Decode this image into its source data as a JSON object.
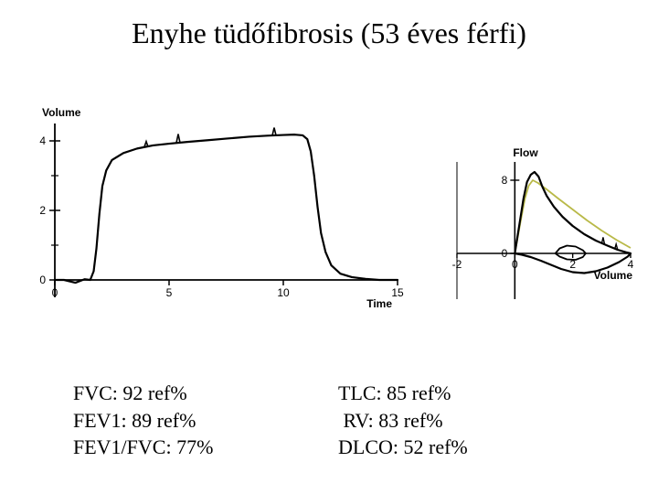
{
  "title": "Enyhe tüdőfibrosis (53 éves férfi)",
  "title_fontsize": 32,
  "title_color": "#000000",
  "values_left": "FVC: 92 ref%\nFEV1: 89 ref%\nFEV1/FVC: 77%",
  "values_right": "TLC: 85 ref%\n RV: 83 ref%\nDLCO: 52 ref%",
  "values_fontsize": 22,
  "volume_chart": {
    "type": "line",
    "xlabel": "Time",
    "ylabel": "Volume",
    "xlim": [
      0,
      15
    ],
    "ylim": [
      -0.5,
      4.5
    ],
    "xticks": [
      0,
      5,
      10,
      15
    ],
    "yticks": [
      0,
      2,
      4
    ],
    "line_color": "#000000",
    "line_width": 2.2,
    "axis_color": "#000000",
    "tick_len": 6,
    "background": "#ffffff",
    "series": [
      [
        0.0,
        0.0
      ],
      [
        0.4,
        0.0
      ],
      [
        0.9,
        -0.08
      ],
      [
        1.3,
        0.02
      ],
      [
        1.55,
        0.0
      ],
      [
        1.7,
        0.25
      ],
      [
        1.82,
        0.9
      ],
      [
        1.95,
        1.9
      ],
      [
        2.08,
        2.7
      ],
      [
        2.25,
        3.15
      ],
      [
        2.5,
        3.45
      ],
      [
        3.0,
        3.65
      ],
      [
        3.6,
        3.78
      ],
      [
        4.3,
        3.87
      ],
      [
        5.0,
        3.92
      ],
      [
        5.8,
        3.97
      ],
      [
        6.7,
        4.02
      ],
      [
        7.6,
        4.07
      ],
      [
        8.5,
        4.12
      ],
      [
        9.3,
        4.15
      ],
      [
        10.0,
        4.17
      ],
      [
        10.5,
        4.18
      ],
      [
        10.85,
        4.16
      ],
      [
        11.05,
        4.05
      ],
      [
        11.2,
        3.7
      ],
      [
        11.35,
        3.0
      ],
      [
        11.5,
        2.1
      ],
      [
        11.65,
        1.35
      ],
      [
        11.85,
        0.8
      ],
      [
        12.1,
        0.42
      ],
      [
        12.5,
        0.18
      ],
      [
        13.0,
        0.08
      ],
      [
        13.6,
        0.03
      ],
      [
        14.2,
        0.0
      ],
      [
        15.0,
        0.0
      ]
    ],
    "blips": [
      {
        "x": 4.0,
        "dy": 0.15
      },
      {
        "x": 5.4,
        "dy": 0.25
      },
      {
        "x": 9.6,
        "dy": 0.22
      }
    ]
  },
  "flow_chart": {
    "type": "line",
    "xlabel": "Volume",
    "ylabel": "Flow",
    "xlim": [
      -2,
      4
    ],
    "ylim": [
      -5,
      10
    ],
    "xticks": [
      -2,
      0,
      2,
      4
    ],
    "yticks": [
      0,
      8
    ],
    "line_width": 2.2,
    "axis_color": "#000000",
    "black": "#000000",
    "ref_color": "#b9b948",
    "background": "#ffffff",
    "loop": [
      [
        0.0,
        0.0
      ],
      [
        0.15,
        3.0
      ],
      [
        0.3,
        6.0
      ],
      [
        0.42,
        7.8
      ],
      [
        0.55,
        8.6
      ],
      [
        0.68,
        8.9
      ],
      [
        0.82,
        8.4
      ],
      [
        0.95,
        7.3
      ],
      [
        1.1,
        6.3
      ],
      [
        1.35,
        5.1
      ],
      [
        1.65,
        4.0
      ],
      [
        2.0,
        3.0
      ],
      [
        2.4,
        2.1
      ],
      [
        2.8,
        1.4
      ],
      [
        3.2,
        0.85
      ],
      [
        3.55,
        0.4
      ],
      [
        3.85,
        0.12
      ],
      [
        4.0,
        0.0
      ],
      [
        3.9,
        -0.35
      ],
      [
        3.6,
        -0.95
      ],
      [
        3.2,
        -1.55
      ],
      [
        2.8,
        -1.95
      ],
      [
        2.4,
        -2.15
      ],
      [
        2.0,
        -2.05
      ],
      [
        1.6,
        -1.7
      ],
      [
        1.25,
        -1.25
      ],
      [
        0.9,
        -0.8
      ],
      [
        0.55,
        -0.4
      ],
      [
        0.25,
        -0.15
      ],
      [
        0.0,
        0.0
      ]
    ],
    "ref_curve": [
      [
        0.0,
        0.0
      ],
      [
        0.2,
        3.5
      ],
      [
        0.35,
        6.0
      ],
      [
        0.48,
        7.4
      ],
      [
        0.62,
        8.0
      ],
      [
        0.8,
        7.7
      ],
      [
        1.1,
        7.0
      ],
      [
        1.5,
        6.0
      ],
      [
        2.0,
        4.8
      ],
      [
        2.5,
        3.6
      ],
      [
        3.0,
        2.5
      ],
      [
        3.5,
        1.5
      ],
      [
        4.0,
        0.6
      ]
    ],
    "tidal_loop": [
      [
        1.4,
        0.0
      ],
      [
        1.55,
        0.55
      ],
      [
        1.8,
        0.85
      ],
      [
        2.1,
        0.75
      ],
      [
        2.35,
        0.35
      ],
      [
        2.45,
        0.0
      ],
      [
        2.35,
        -0.4
      ],
      [
        2.1,
        -0.7
      ],
      [
        1.8,
        -0.65
      ],
      [
        1.55,
        -0.35
      ],
      [
        1.4,
        0.0
      ]
    ],
    "blips_top": [
      {
        "x": 3.05,
        "dy": 0.7
      },
      {
        "x": 3.5,
        "dy": 0.55
      }
    ]
  }
}
